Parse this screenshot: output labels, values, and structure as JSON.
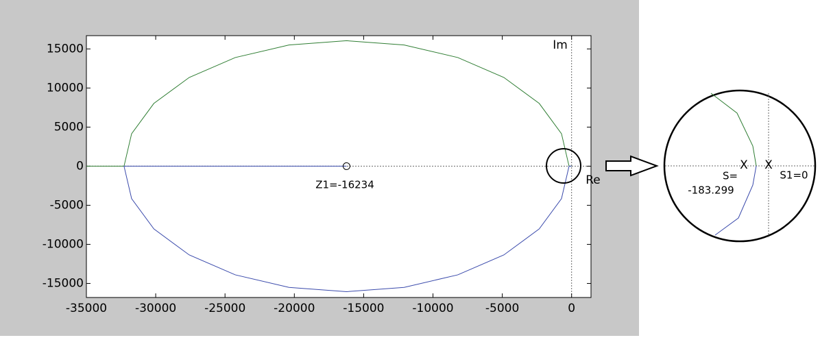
{
  "chart_data": {
    "type": "line",
    "xlim": [
      -35000,
      1400
    ],
    "ylim": [
      -16800,
      16700
    ],
    "xticks": [
      -35000,
      -30000,
      -25000,
      -20000,
      -15000,
      -10000,
      -5000,
      0
    ],
    "yticks": [
      -15000,
      -10000,
      -5000,
      0,
      5000,
      10000,
      15000
    ],
    "series": [
      {
        "color": "#2e7d32",
        "x": [
          0,
          -183,
          -729,
          -2334,
          -4884,
          -8209,
          -12080,
          -16234,
          -20388,
          -24260,
          -27584,
          -30134,
          -31738,
          -32285,
          -35000
        ],
        "values": [
          0,
          0,
          4154,
          8026,
          11350,
          13900,
          15504,
          16051,
          15504,
          13900,
          11350,
          8026,
          4154,
          0,
          0
        ]
      },
      {
        "color": "#3949ab",
        "x": [
          0,
          -183,
          -729,
          -2334,
          -4884,
          -8209,
          -12080,
          -16234,
          -20388,
          -24260,
          -27584,
          -30134,
          -31738,
          -32285,
          -16234
        ],
        "values": [
          0,
          0,
          -4154,
          -8026,
          -11350,
          -13900,
          -15504,
          -16051,
          -15504,
          -13900,
          -11350,
          -8026,
          -4154,
          0,
          0
        ]
      }
    ],
    "zero": {
      "x": -16234,
      "value": 0
    },
    "annotations": [
      "Im",
      "Re",
      "Z1=-16234"
    ],
    "inset_labels": [
      "X",
      "X",
      "S=",
      "-183.299",
      "S1=0"
    ]
  }
}
